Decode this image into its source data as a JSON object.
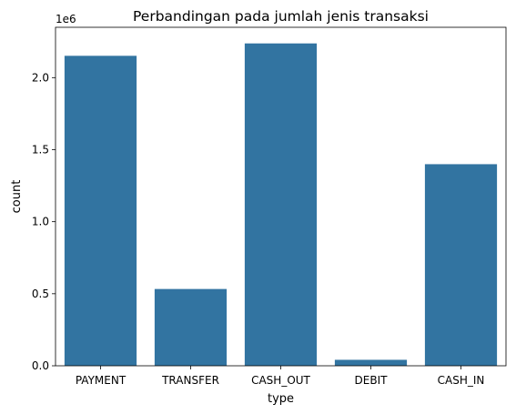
{
  "chart_data": {
    "type": "bar",
    "title": "Perbandingan pada jumlah jenis transaksi",
    "xlabel": "type",
    "ylabel": "count",
    "y_offset_label": "1e6",
    "categories": [
      "PAYMENT",
      "TRANSFER",
      "CASH_OUT",
      "DEBIT",
      "CASH_IN"
    ],
    "values": [
      2151495,
      532909,
      2237500,
      41432,
      1399284
    ],
    "ylim": [
      0,
      2349375
    ],
    "yticks": [
      0,
      500000,
      1000000,
      1500000,
      2000000
    ],
    "ytick_labels": [
      "0.0",
      "0.5",
      "1.0",
      "1.5",
      "2.0"
    ],
    "bar_color": "#3274a1",
    "grid": false,
    "legend": "none"
  }
}
